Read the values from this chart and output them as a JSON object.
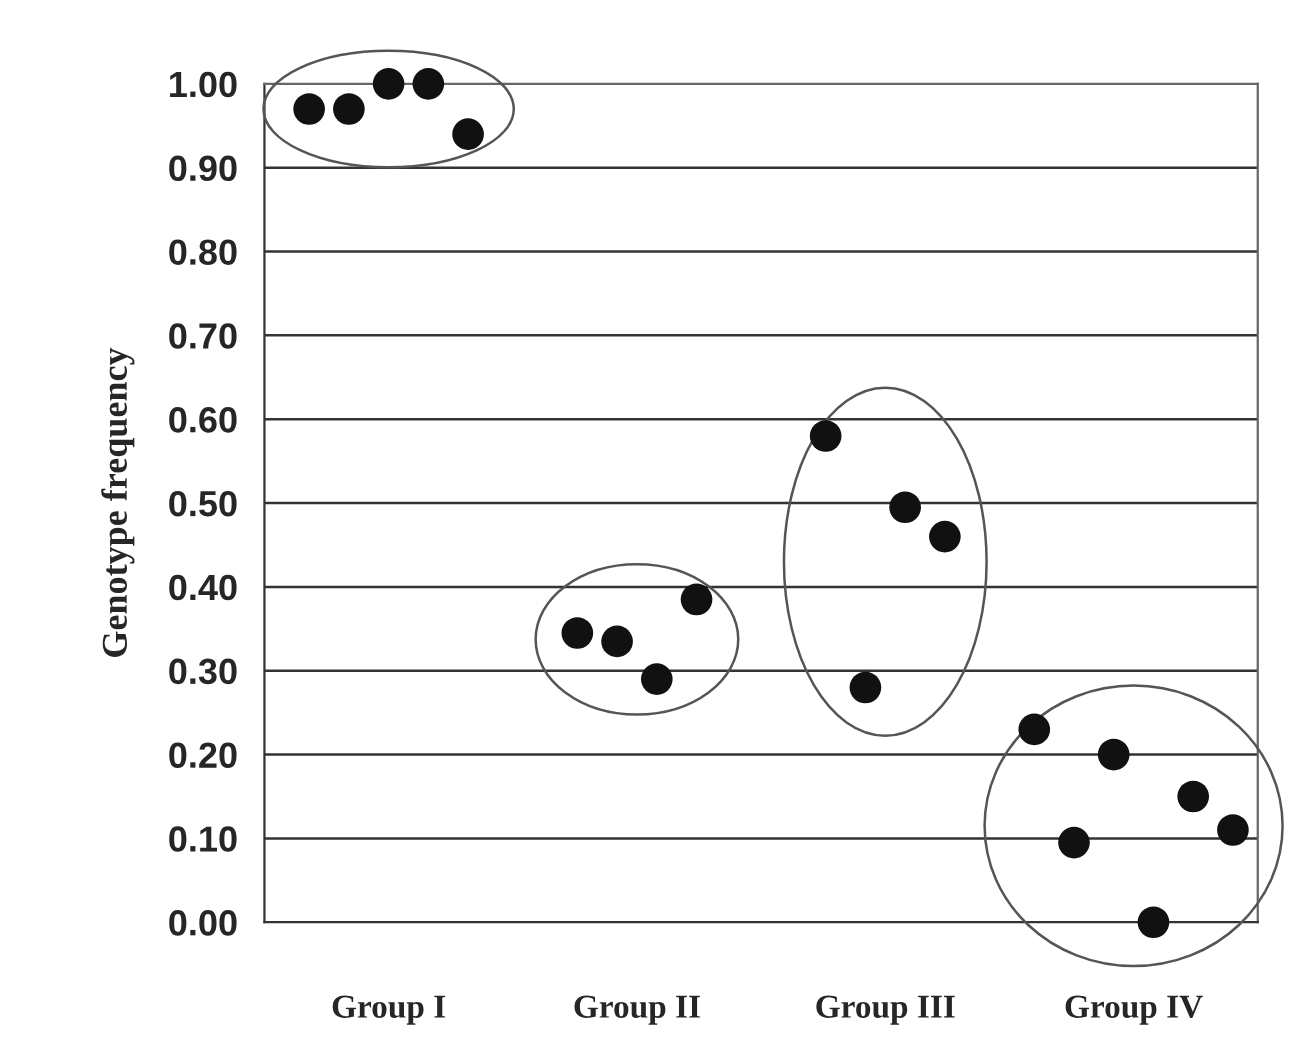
{
  "chart_data": {
    "type": "scatter",
    "ylabel": "Genotype frequency",
    "marker": "circle",
    "grid": "y",
    "categories": [
      "Group I",
      "Group II",
      "Group III",
      "Group IV"
    ],
    "ylim": [
      0,
      1.0
    ],
    "yticks": [
      {
        "value": 0,
        "label": "0.00"
      },
      {
        "value": 0.1,
        "label": "0.10"
      },
      {
        "value": 0.2,
        "label": "0.20"
      },
      {
        "value": 0.3,
        "label": "0.30"
      },
      {
        "value": 0.4,
        "label": "0.40"
      },
      {
        "value": 0.5,
        "label": "0.50"
      },
      {
        "value": 0.6,
        "label": "0.60"
      },
      {
        "value": 0.7,
        "label": "0.70"
      },
      {
        "value": 0.8,
        "label": "0.80"
      },
      {
        "value": 0.9,
        "label": "0.90"
      },
      {
        "value": 1.0,
        "label": "1.00"
      }
    ],
    "series": [
      {
        "color": "#111111",
        "x": [
          "Group I",
          "Group I",
          "Group I",
          "Group I",
          "Group I"
        ],
        "values": [
          0.97,
          0.97,
          1.0,
          1.0,
          0.94
        ]
      },
      {
        "color": "#111111",
        "x": [
          "Group II",
          "Group II",
          "Group II",
          "Group II"
        ],
        "values": [
          0.345,
          0.335,
          0.29,
          0.385
        ]
      },
      {
        "color": "#111111",
        "x": [
          "Group III",
          "Group III",
          "Group III",
          "Group III"
        ],
        "values": [
          0.58,
          0.28,
          0.495,
          0.46
        ]
      },
      {
        "color": "#111111",
        "x": [
          "Group IV",
          "Group IV",
          "Group IV",
          "Group IV",
          "Group IV",
          "Group IV"
        ],
        "values": [
          0.23,
          0.095,
          0.2,
          0.0,
          0.15,
          0.11
        ]
      }
    ]
  }
}
